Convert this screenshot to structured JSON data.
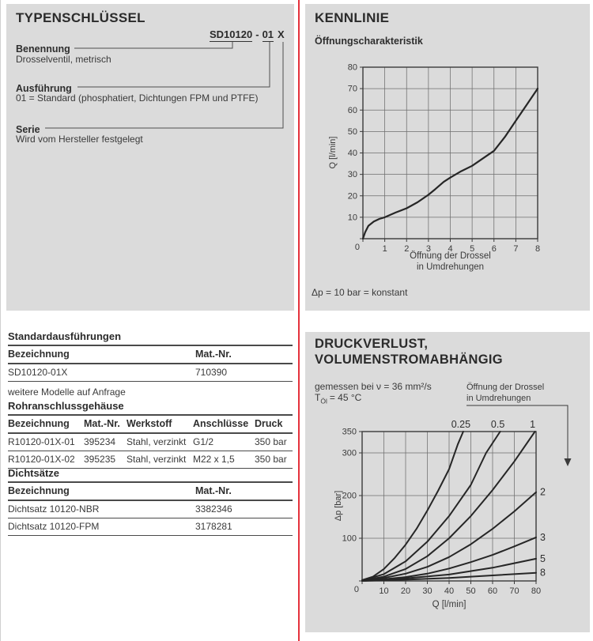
{
  "colors": {
    "panel": "#dbdbdb",
    "divider": "#e5323c",
    "text": "#3a3a3a",
    "line": "#4a4a4a"
  },
  "typenschluessel": {
    "title": "TYPENSCHLÜSSEL",
    "code_base": "SD10120",
    "code_sep": "-",
    "code_ausfuehrung": "01",
    "code_serie": "X",
    "benennung_label": "Benennung",
    "benennung_text": "Drosselventil, metrisch",
    "ausfuehrung_label": "Ausführung",
    "ausfuehrung_text": "01 = Standard (phosphatiert, Dichtungen FPM und PTFE)",
    "serie_label": "Serie",
    "serie_text": "Wird vom Hersteller festgelegt"
  },
  "tables": {
    "standard": {
      "title": "Standardausführungen",
      "headers": [
        "Bezeichnung",
        "Mat.-Nr."
      ],
      "rows": [
        [
          "SD10120-01X",
          "710390"
        ]
      ],
      "note": "weitere Modelle auf Anfrage"
    },
    "rohr": {
      "title": "Rohranschlussgehäuse",
      "headers": [
        "Bezeichnung",
        "Mat.-Nr.",
        "Werkstoff",
        "Anschlüsse",
        "Druck"
      ],
      "rows": [
        [
          "R10120-01X-01",
          "395234",
          "Stahl, verzinkt",
          "G1/2",
          "350 bar"
        ],
        [
          "R10120-01X-02",
          "395235",
          "Stahl, verzinkt",
          "M22 x 1,5",
          "350 bar"
        ]
      ]
    },
    "dicht": {
      "title": "Dichtsätze",
      "headers": [
        "Bezeichnung",
        "Mat.-Nr."
      ],
      "rows": [
        [
          "Dichtsatz 10120-NBR",
          "3382346"
        ],
        [
          "Dichtsatz 10120-FPM",
          "3178281"
        ]
      ]
    }
  },
  "kennlinie": {
    "title": "KENNLINIE",
    "subtitle": "Öffnungscharakteristik",
    "ylabel": "Q [l/min]",
    "xlabel_line1": "Öffnung der Drossel",
    "xlabel_line2": "in Umdrehungen",
    "note": "Δp = 10 bar = konstant"
  },
  "druckverlust": {
    "title_line1": "DRUCKVERLUST,",
    "title_line2": "VOLUMENSTROMABHÄNGIG",
    "measured_line": "gemessen bei ν = 36 mm²/s",
    "temp_symbol": "T",
    "temp_sub": "Öl",
    "temp_value": "= 45 °C",
    "pointer_line1": "Öffnung der Drossel",
    "pointer_line2": "in Umdrehungen",
    "ylabel": "Δp [bar]",
    "xlabel": "Q [l/min]"
  },
  "chart_data": [
    {
      "type": "line",
      "title": "Öffnungscharakteristik",
      "xlabel": "Öffnung der Drossel in Umdrehungen",
      "ylabel": "Q [l/min]",
      "xlim": [
        0,
        8
      ],
      "ylim": [
        0,
        80
      ],
      "xticks": [
        0,
        1,
        2,
        3,
        4,
        5,
        6,
        7,
        8
      ],
      "yticks": [
        0,
        10,
        20,
        30,
        40,
        50,
        60,
        70,
        80
      ],
      "grid": true,
      "annotation": "Δp = 10 bar = konstant",
      "series": [
        {
          "name": "Q",
          "points": [
            [
              0,
              0
            ],
            [
              0.1,
              3
            ],
            [
              0.25,
              6
            ],
            [
              0.5,
              8
            ],
            [
              0.75,
              9.2
            ],
            [
              1,
              10
            ],
            [
              1.5,
              12.2
            ],
            [
              2,
              14.2
            ],
            [
              2.5,
              17
            ],
            [
              3,
              20.5
            ],
            [
              3.3,
              23
            ],
            [
              3.7,
              26.5
            ],
            [
              4,
              28.5
            ],
            [
              4.5,
              31.5
            ],
            [
              5,
              34
            ],
            [
              5.5,
              37.5
            ],
            [
              6,
              41
            ],
            [
              6.5,
              47.5
            ],
            [
              7,
              55
            ],
            [
              7.5,
              62.5
            ],
            [
              8,
              70
            ]
          ]
        }
      ]
    },
    {
      "type": "line",
      "title": "Druckverlust, volumenstromabhängig",
      "xlabel": "Q [l/min]",
      "ylabel": "Δp [bar]",
      "xlim": [
        0,
        80
      ],
      "ylim": [
        0,
        350
      ],
      "xticks": [
        0,
        10,
        20,
        30,
        40,
        50,
        60,
        70,
        80
      ],
      "yticks": [
        0,
        100,
        200,
        300,
        350
      ],
      "grid": true,
      "series_label_meaning": "Öffnung der Drossel in Umdrehungen",
      "series": [
        {
          "name": "0.25",
          "points": [
            [
              0,
              2
            ],
            [
              5,
              10
            ],
            [
              10,
              28
            ],
            [
              15,
              54
            ],
            [
              20,
              85
            ],
            [
              25,
              122
            ],
            [
              30,
              165
            ],
            [
              35,
              212
            ],
            [
              40,
              262
            ],
            [
              44,
              320
            ],
            [
              46.5,
              350
            ]
          ]
        },
        {
          "name": "0.5",
          "points": [
            [
              0,
              1
            ],
            [
              10,
              16
            ],
            [
              20,
              46
            ],
            [
              30,
              92
            ],
            [
              40,
              152
            ],
            [
              50,
              225
            ],
            [
              57,
              300
            ],
            [
              63.5,
              350
            ]
          ]
        },
        {
          "name": "1",
          "points": [
            [
              0,
              1
            ],
            [
              10,
              10
            ],
            [
              20,
              28
            ],
            [
              30,
              58
            ],
            [
              40,
              100
            ],
            [
              50,
              152
            ],
            [
              60,
              213
            ],
            [
              70,
              280
            ],
            [
              79.5,
              350
            ]
          ]
        },
        {
          "name": "2",
          "points": [
            [
              0,
              1
            ],
            [
              10,
              7
            ],
            [
              20,
              17
            ],
            [
              30,
              33
            ],
            [
              40,
              56
            ],
            [
              50,
              86
            ],
            [
              60,
              122
            ],
            [
              70,
              163
            ],
            [
              80,
              208
            ]
          ]
        },
        {
          "name": "3",
          "points": [
            [
              0,
              0
            ],
            [
              10,
              4
            ],
            [
              20,
              9
            ],
            [
              30,
              17
            ],
            [
              40,
              29
            ],
            [
              50,
              44
            ],
            [
              60,
              61
            ],
            [
              70,
              81
            ],
            [
              80,
              102
            ]
          ]
        },
        {
          "name": "5",
          "points": [
            [
              0,
              0
            ],
            [
              20,
              6
            ],
            [
              40,
              15
            ],
            [
              60,
              31
            ],
            [
              80,
              52
            ]
          ]
        },
        {
          "name": "8",
          "points": [
            [
              0,
              0
            ],
            [
              20,
              3
            ],
            [
              40,
              7
            ],
            [
              60,
              13
            ],
            [
              80,
              19
            ]
          ]
        }
      ]
    }
  ]
}
